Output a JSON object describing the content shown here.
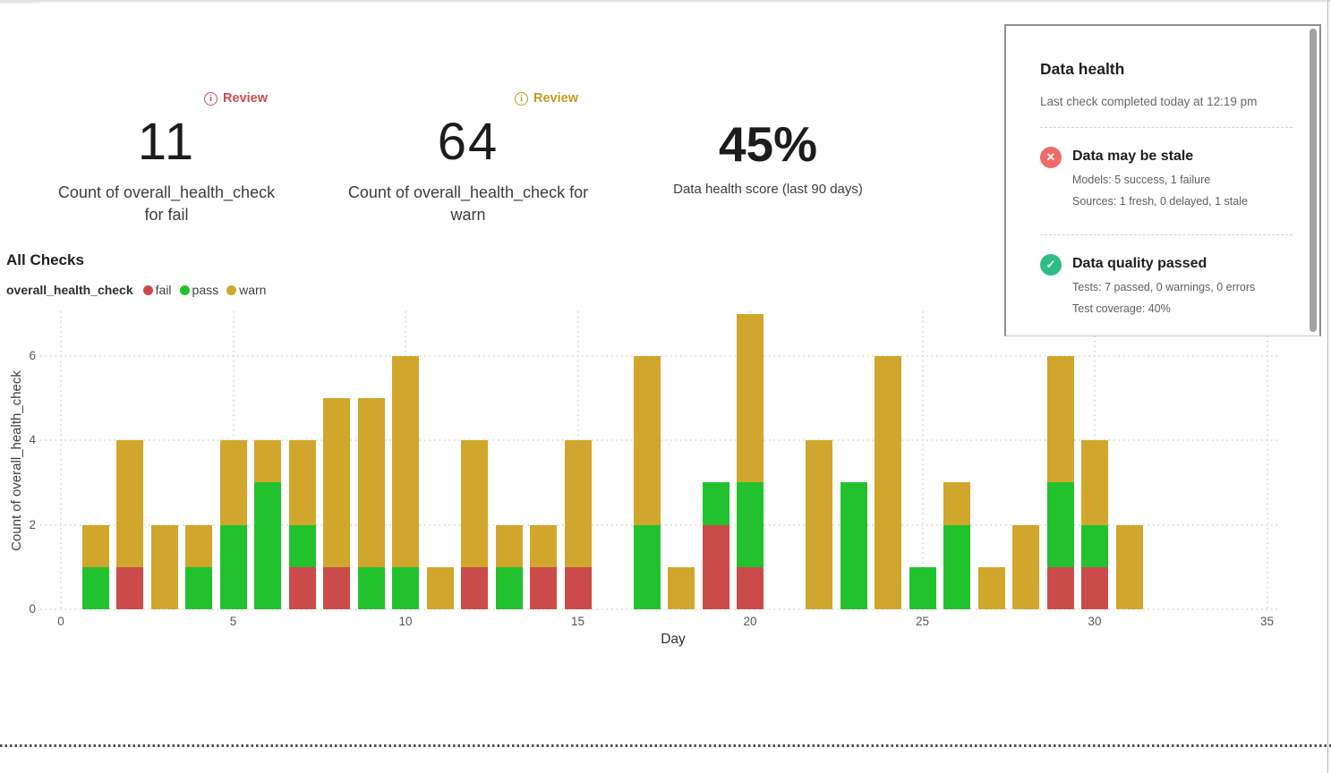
{
  "kpis": [
    {
      "badge": "Review",
      "badge_color": "#d04a54",
      "value": "11",
      "label": "Count of overall_health_check for fail"
    },
    {
      "badge": "Review",
      "badge_color": "#c49b1f",
      "value": "64",
      "label": "Count of overall_health_check for warn"
    },
    {
      "value": "45%",
      "label": "Data health score (last 90 days)"
    }
  ],
  "section_title": "All Checks",
  "legend": {
    "title": "overall_health_check",
    "items": [
      {
        "label": "fail",
        "color": "#cb4b4b"
      },
      {
        "label": "pass",
        "color": "#22c22f"
      },
      {
        "label": "warn",
        "color": "#d0a72c"
      }
    ]
  },
  "chart_data": {
    "type": "bar",
    "stacked": true,
    "title": "All Checks",
    "xlabel": "Day",
    "ylabel": "Count of overall_health_check",
    "x": [
      1,
      2,
      3,
      4,
      5,
      6,
      7,
      8,
      9,
      10,
      11,
      12,
      13,
      14,
      15,
      16,
      17,
      18,
      19,
      20,
      21,
      22,
      23,
      24,
      25,
      26,
      27,
      28,
      29,
      30,
      31
    ],
    "series": [
      {
        "name": "fail",
        "color": "#cb4b4b",
        "values": [
          0,
          1,
          0,
          0,
          0,
          0,
          1,
          1,
          0,
          0,
          0,
          1,
          0,
          1,
          1,
          0,
          0,
          0,
          2,
          1,
          0,
          0,
          0,
          0,
          0,
          0,
          0,
          0,
          1,
          1,
          0
        ]
      },
      {
        "name": "pass",
        "color": "#22c22f",
        "values": [
          1,
          0,
          0,
          1,
          2,
          3,
          1,
          0,
          1,
          1,
          0,
          0,
          1,
          0,
          0,
          0,
          2,
          0,
          1,
          2,
          0,
          0,
          3,
          0,
          1,
          2,
          0,
          0,
          2,
          1,
          0
        ]
      },
      {
        "name": "warn",
        "color": "#d0a72c",
        "values": [
          1,
          3,
          2,
          1,
          2,
          1,
          2,
          4,
          4,
          5,
          1,
          3,
          1,
          1,
          3,
          0,
          4,
          1,
          0,
          4,
          0,
          4,
          0,
          6,
          0,
          1,
          1,
          2,
          3,
          2,
          2
        ]
      }
    ],
    "x_ticks": [
      0,
      5,
      10,
      15,
      20,
      25,
      30,
      35
    ],
    "y_ticks": [
      0,
      2,
      4,
      6
    ],
    "xlim": [
      0,
      35.5
    ],
    "ylim": [
      0,
      7.1
    ],
    "grid": "dotted"
  },
  "panel": {
    "title": "Data health",
    "subtitle": "Last check completed today at 12:19 pm",
    "items": [
      {
        "icon": "x-circle",
        "icon_color": "#f06a6a",
        "title": "Data may be stale",
        "lines": [
          "Models: 5 success, 1 failure",
          "Sources: 1 fresh, 0 delayed, 1 stale"
        ]
      },
      {
        "icon": "check-circle",
        "icon_color": "#2dbd85",
        "title": "Data quality passed",
        "lines": [
          "Tests: 7 passed, 0 warnings, 0 errors",
          "Test coverage: 40%"
        ]
      }
    ]
  }
}
